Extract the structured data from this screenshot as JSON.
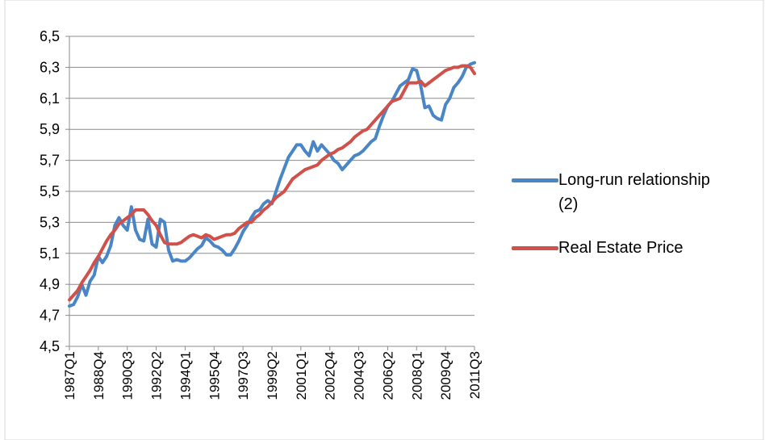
{
  "chart_data": {
    "type": "line",
    "categories": [
      "1987Q1",
      null,
      null,
      null,
      null,
      null,
      null,
      "1988Q4",
      null,
      null,
      null,
      null,
      null,
      null,
      "1990Q3",
      null,
      null,
      null,
      null,
      null,
      null,
      "1992Q2",
      null,
      null,
      null,
      null,
      null,
      null,
      "1994Q1",
      null,
      null,
      null,
      null,
      null,
      null,
      "1995Q4",
      null,
      null,
      null,
      null,
      null,
      null,
      "1997Q3",
      null,
      null,
      null,
      null,
      null,
      null,
      "1999Q2",
      null,
      null,
      null,
      null,
      null,
      null,
      "2001Q1",
      null,
      null,
      null,
      null,
      null,
      null,
      "2002Q4",
      null,
      null,
      null,
      null,
      null,
      null,
      "2004Q3",
      null,
      null,
      null,
      null,
      null,
      null,
      "2006Q2",
      null,
      null,
      null,
      null,
      null,
      null,
      "2008Q1",
      null,
      null,
      null,
      null,
      null,
      null,
      "2009Q4",
      null,
      null,
      null,
      null,
      null,
      null,
      "2011Q3"
    ],
    "series": [
      {
        "name": "Long-run relationship (2)",
        "color": "#4a86c5",
        "values": [
          4.76,
          4.77,
          4.82,
          4.9,
          4.83,
          4.92,
          4.96,
          5.08,
          5.04,
          5.08,
          5.15,
          5.28,
          5.33,
          5.28,
          5.25,
          5.4,
          5.25,
          5.19,
          5.18,
          5.32,
          5.16,
          5.14,
          5.32,
          5.3,
          5.12,
          5.05,
          5.06,
          5.05,
          5.05,
          5.07,
          5.1,
          5.13,
          5.15,
          5.2,
          5.18,
          5.15,
          5.14,
          5.12,
          5.09,
          5.09,
          5.13,
          5.18,
          5.24,
          5.28,
          5.33,
          5.37,
          5.38,
          5.42,
          5.44,
          5.42,
          5.5,
          5.58,
          5.65,
          5.72,
          5.76,
          5.8,
          5.8,
          5.76,
          5.73,
          5.82,
          5.76,
          5.8,
          5.77,
          5.74,
          5.7,
          5.68,
          5.64,
          5.67,
          5.7,
          5.73,
          5.74,
          5.76,
          5.79,
          5.82,
          5.84,
          5.92,
          5.99,
          6.05,
          6.08,
          6.13,
          6.18,
          6.2,
          6.22,
          6.29,
          6.28,
          6.18,
          6.04,
          6.05,
          5.99,
          5.97,
          5.96,
          6.06,
          6.1,
          6.17,
          6.2,
          6.24,
          6.3,
          6.32,
          6.33
        ]
      },
      {
        "name": "Real Estate Price",
        "color": "#d0504a",
        "values": [
          4.8,
          4.83,
          4.86,
          4.91,
          4.95,
          4.99,
          5.04,
          5.08,
          5.13,
          5.18,
          5.22,
          5.25,
          5.29,
          5.31,
          5.33,
          5.35,
          5.38,
          5.38,
          5.38,
          5.35,
          5.31,
          5.28,
          5.22,
          5.17,
          5.16,
          5.16,
          5.16,
          5.17,
          5.19,
          5.21,
          5.22,
          5.21,
          5.2,
          5.22,
          5.21,
          5.19,
          5.2,
          5.21,
          5.22,
          5.22,
          5.23,
          5.26,
          5.28,
          5.3,
          5.3,
          5.33,
          5.35,
          5.38,
          5.4,
          5.43,
          5.46,
          5.48,
          5.5,
          5.54,
          5.58,
          5.6,
          5.62,
          5.64,
          5.65,
          5.66,
          5.67,
          5.7,
          5.72,
          5.74,
          5.75,
          5.77,
          5.78,
          5.8,
          5.82,
          5.85,
          5.87,
          5.89,
          5.9,
          5.93,
          5.96,
          5.99,
          6.02,
          6.05,
          6.08,
          6.09,
          6.1,
          6.15,
          6.2,
          6.2,
          6.2,
          6.21,
          6.18,
          6.2,
          6.22,
          6.24,
          6.26,
          6.28,
          6.29,
          6.3,
          6.3,
          6.31,
          6.31,
          6.3,
          6.26
        ]
      }
    ],
    "ylim": [
      4.5,
      6.5
    ],
    "yticks": [
      {
        "value": 4.5,
        "label": "4,5"
      },
      {
        "value": 4.7,
        "label": "4,7"
      },
      {
        "value": 4.9,
        "label": "4,9"
      },
      {
        "value": 5.1,
        "label": "5,1"
      },
      {
        "value": 5.3,
        "label": "5,3"
      },
      {
        "value": 5.5,
        "label": "5,5"
      },
      {
        "value": 5.7,
        "label": "5,7"
      },
      {
        "value": 5.9,
        "label": "5,9"
      },
      {
        "value": 6.1,
        "label": "6,1"
      },
      {
        "value": 6.3,
        "label": "6,3"
      },
      {
        "value": 6.5,
        "label": "6,5"
      }
    ],
    "grid": true,
    "legend": "right"
  }
}
